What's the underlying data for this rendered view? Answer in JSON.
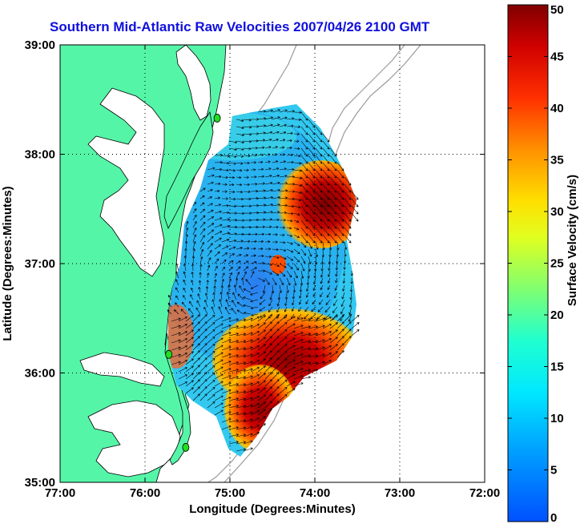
{
  "title": "Southern Mid-Atlantic Raw Velocities 2007/04/26 2100 GMT",
  "x_axis": {
    "label": "Longitude (Degrees:Minutes)",
    "ticks": [
      "77:00",
      "76:00",
      "75:00",
      "74:00",
      "73:00",
      "72:00"
    ]
  },
  "y_axis": {
    "label": "Latitude (Degrees:Minutes)",
    "ticks": [
      "39:00",
      "38:00",
      "37:00",
      "36:00",
      "35:00"
    ]
  },
  "colorbar": {
    "label": "Surface Velocity (cm/s)",
    "ticks": [
      "50",
      "45",
      "40",
      "35",
      "30",
      "25",
      "20",
      "15",
      "10",
      "5",
      "0"
    ],
    "range": [
      0,
      50
    ],
    "colormap": "jet"
  },
  "colors": {
    "title": "#1010dd",
    "land": "#55f5a8",
    "ocean": "#ffffff",
    "bathymetry": "#9a9a9a",
    "station_marker": "#22dd22"
  },
  "map": {
    "lon_range": [
      -77,
      -72
    ],
    "lat_range": [
      35,
      39
    ],
    "grid": true,
    "stations": [
      {
        "lon": -75.15,
        "lat": 38.33
      },
      {
        "lon": -75.72,
        "lat": 36.17
      },
      {
        "lon": -75.52,
        "lat": 35.32
      }
    ]
  }
}
